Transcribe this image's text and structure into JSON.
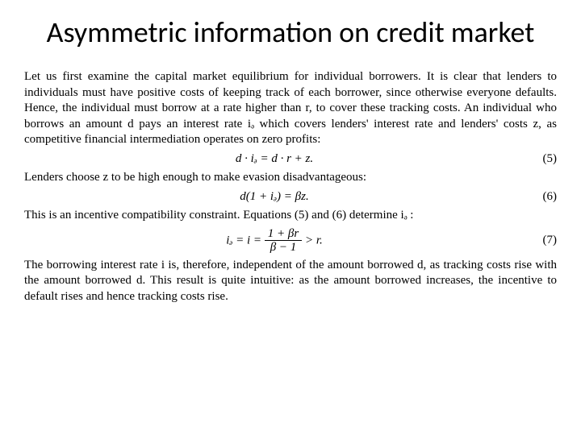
{
  "title": "Asymmetric information on credit market",
  "para1": "Let us first examine the capital market equilibrium for individual borrowers. It is clear that lenders to individuals must have positive costs of keeping track of each borrower, since otherwise everyone defaults. Hence, the individual must borrow at a rate higher than r, to cover these tracking costs. An individual who borrows an amount d pays an interest rate iₔ which covers lenders' interest rate and lenders' costs z, as competitive financial intermediation operates on zero profits:",
  "eq5": "d · iₔ = d · r + z.",
  "eq5_num": "(5)",
  "para2": "Lenders choose z to be high enough to make evasion disadvantageous:",
  "eq6": "d(1 + iₔ) = βz.",
  "eq6_num": "(6)",
  "para3": "This is an incentive compatibility constraint. Equations (5) and (6) determine iₔ :",
  "eq7_lhs": "iₔ = i =",
  "eq7_num_frac": "1 + βr",
  "eq7_den_frac": "β − 1",
  "eq7_rhs": "> r.",
  "eq7_num": "(7)",
  "para4": "The borrowing interest rate i is, therefore, independent of the amount borrowed d, as tracking costs rise with the amount borrowed d. This result is quite intuitive: as the amount borrowed increases, the incentive to default rises and hence tracking costs rise.",
  "colors": {
    "background": "#ffffff",
    "text": "#000000"
  },
  "fonts": {
    "title_family": "Calibri",
    "title_size_pt": 36,
    "body_family": "Times New Roman",
    "body_size_pt": 15
  }
}
